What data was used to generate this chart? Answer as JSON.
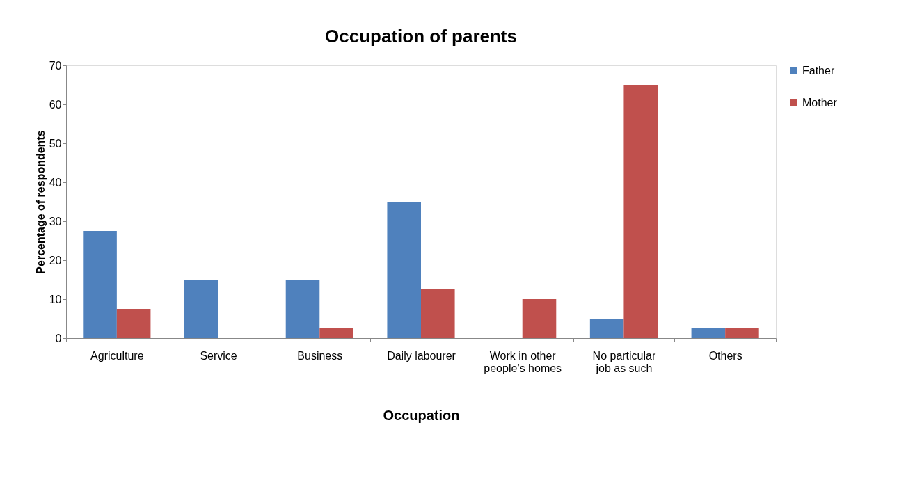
{
  "chart_data": {
    "type": "bar",
    "title": "Occupation of parents",
    "xlabel": "Occupation",
    "ylabel": "Percentage of respondents",
    "categories": [
      "Agriculture",
      "Service",
      "Business",
      "Daily labourer",
      "Work in other people’s homes",
      "No particular job as such",
      "Others"
    ],
    "series": [
      {
        "name": "Father",
        "color": "#4f81bd",
        "values": [
          27.5,
          15,
          15,
          35,
          0,
          5,
          2.5
        ]
      },
      {
        "name": "Mother",
        "color": "#c0504d",
        "values": [
          7.5,
          0,
          2.5,
          12.5,
          10,
          65,
          2.5
        ]
      }
    ],
    "ylim": [
      0,
      70
    ],
    "yticks": [
      0,
      10,
      20,
      30,
      40,
      50,
      60,
      70
    ],
    "grid": false,
    "legend": "top right"
  }
}
